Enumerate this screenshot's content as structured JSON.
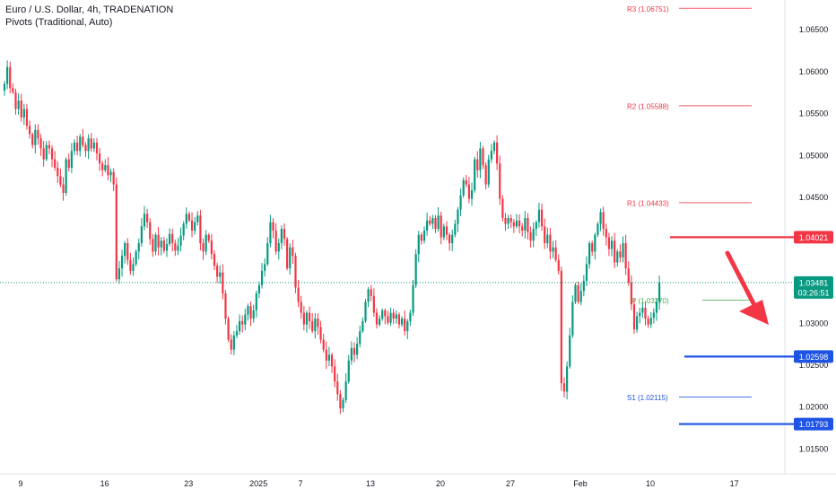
{
  "legend": {
    "title": "Euro / U.S. Dollar, 4h, TRADENATION",
    "indicator": "Pivots (Traditional, Auto)"
  },
  "colors": {
    "up": "#089981",
    "down": "#f23645",
    "resistance": "#f23645",
    "support": "#1e53e5",
    "pivot": "#4caf50",
    "price": "#089981",
    "arrow": "#f23645",
    "axis_text": "#131722"
  },
  "chart_data": {
    "type": "candlestick",
    "symbol": "Euro / U.S. Dollar",
    "timeframe": "4h",
    "ylim": [
      1.012,
      1.0685
    ],
    "y_ticks": [
      "1.06500",
      "1.06000",
      "1.05500",
      "1.05000",
      "1.04500",
      "1.04000",
      "1.03500",
      "1.03000",
      "1.02500",
      "1.02000",
      "1.01500"
    ],
    "x_ticks": [
      {
        "label": "9",
        "idx": 0
      },
      {
        "label": "16",
        "idx": 30
      },
      {
        "label": "23",
        "idx": 60
      },
      {
        "label": "2025",
        "idx": 85
      },
      {
        "label": "7",
        "idx": 100
      },
      {
        "label": "13",
        "idx": 125
      },
      {
        "label": "20",
        "idx": 150
      },
      {
        "label": "27",
        "idx": 175
      },
      {
        "label": "Feb",
        "idx": 200
      },
      {
        "label": "10",
        "idx": 225
      },
      {
        "label": "17",
        "idx": 255
      }
    ],
    "pivots": [
      {
        "label": "R3 (1.06751)",
        "value": 1.06751,
        "kind": "resistance"
      },
      {
        "label": "R2 (1.05588)",
        "value": 1.05588,
        "kind": "resistance"
      },
      {
        "label": "R1 (1.04433)",
        "value": 1.04433,
        "kind": "resistance"
      },
      {
        "label": "P (1.03270)",
        "value": 1.0327,
        "kind": "pivot"
      },
      {
        "label": "S1 (1.02115)",
        "value": 1.02115,
        "kind": "support"
      }
    ],
    "levels": [
      {
        "label": "1.04021",
        "value": 1.04021,
        "kind": "resistance"
      },
      {
        "label": "1.02598",
        "value": 1.02598,
        "kind": "support"
      },
      {
        "label": "1.01793",
        "value": 1.01793,
        "kind": "support"
      }
    ],
    "current_price": {
      "label": "1.03481",
      "value": 1.03481,
      "countdown": "03:26:51"
    },
    "closes": [
      1.0585,
      1.0605,
      1.058,
      1.0575,
      1.0555,
      1.0565,
      1.0545,
      1.0555,
      1.0535,
      1.0525,
      1.0512,
      1.053,
      1.052,
      1.0508,
      1.0495,
      1.0512,
      1.0508,
      1.0495,
      1.0485,
      1.0475,
      1.0465,
      1.0455,
      1.0495,
      1.0485,
      1.0505,
      1.0515,
      1.0505,
      1.0522,
      1.0512,
      1.0505,
      1.052,
      1.0508,
      1.0515,
      1.0502,
      1.049,
      1.0482,
      1.0488,
      1.0476,
      1.048,
      1.0465,
      1.0352,
      1.0365,
      1.038,
      1.0395,
      1.0375,
      1.0362,
      1.037,
      1.0385,
      1.0395,
      1.0415,
      1.043,
      1.042,
      1.04,
      1.0385,
      1.0405,
      1.039,
      1.0398,
      1.0386,
      1.0394,
      1.0406,
      1.0395,
      1.0386,
      1.0392,
      1.0404,
      1.0418,
      1.043,
      1.0422,
      1.041,
      1.042,
      1.0428,
      1.0395,
      1.0385,
      1.0405,
      1.0398,
      1.0382,
      1.0368,
      1.0355,
      1.036,
      1.0335,
      1.0305,
      1.028,
      1.0268,
      1.0285,
      1.029,
      1.0302,
      1.0298,
      1.031,
      1.032,
      1.0305,
      1.0315,
      1.0335,
      1.0345,
      1.0362,
      1.037,
      1.0395,
      1.042,
      1.041,
      1.0385,
      1.0395,
      1.0412,
      1.04,
      1.0365,
      1.039,
      1.038,
      1.0342,
      1.0325,
      1.0312,
      1.0298,
      1.0312,
      1.0302,
      1.029,
      1.0305,
      1.0295,
      1.028,
      1.0268,
      1.0255,
      1.0262,
      1.0248,
      1.023,
      1.0215,
      1.0198,
      1.0208,
      1.023,
      1.0255,
      1.027,
      1.0262,
      1.0275,
      1.029,
      1.0302,
      1.0325,
      1.034,
      1.0332,
      1.0312,
      1.0298,
      1.0305,
      1.0315,
      1.0308,
      1.03,
      1.0312,
      1.0305,
      1.031,
      1.0298,
      1.0305,
      1.029,
      1.0302,
      1.0312,
      1.0345,
      1.0382,
      1.0405,
      1.0398,
      1.041,
      1.0422,
      1.0418,
      1.0425,
      1.0412,
      1.0428,
      1.0402,
      1.0415,
      1.0405,
      1.0395,
      1.0405,
      1.0418,
      1.0435,
      1.0452,
      1.047,
      1.0465,
      1.0448,
      1.0458,
      1.0495,
      1.0482,
      1.0508,
      1.0488,
      1.0465,
      1.0495,
      1.0505,
      1.0515,
      1.049,
      1.0448,
      1.0425,
      1.0418,
      1.0425,
      1.042,
      1.0415,
      1.0422,
      1.0415,
      1.041,
      1.0425,
      1.0408,
      1.0398,
      1.0412,
      1.042,
      1.0435,
      1.0415,
      1.0395,
      1.0405,
      1.0385,
      1.039,
      1.0375,
      1.0362,
      1.0228,
      1.0218,
      1.0248,
      1.0285,
      1.0325,
      1.0345,
      1.0325,
      1.0338,
      1.035,
      1.037,
      1.0395,
      1.0385,
      1.0405,
      1.0418,
      1.0432,
      1.0412,
      1.0402,
      1.0388,
      1.0398,
      1.0372,
      1.0385,
      1.0378,
      1.0395,
      1.0365,
      1.0348,
      1.0322,
      1.0292,
      1.0308,
      1.0312,
      1.0318,
      1.0305,
      1.0298,
      1.0306,
      1.0312,
      1.0325,
      1.0348
    ]
  }
}
